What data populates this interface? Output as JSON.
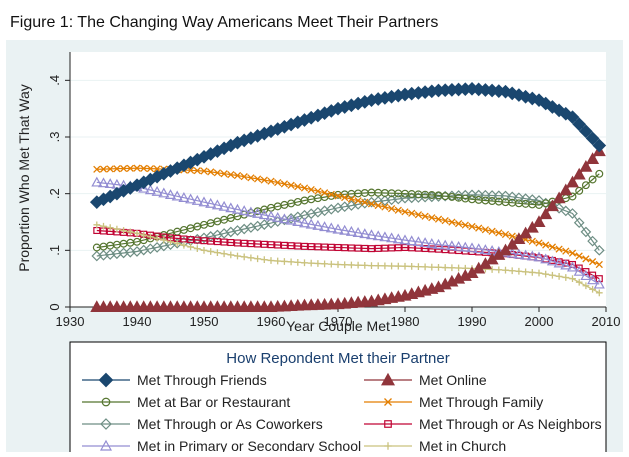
{
  "figure_title": "Figure 1: The Changing Way Americans Meet Their Partners",
  "chart_data": {
    "type": "line",
    "title": "Figure 1: The Changing Way Americans Meet Their Partners",
    "xlabel": "Year Couple Met",
    "ylabel": "Proportion Who Met That Way",
    "xlim": [
      1930,
      2010
    ],
    "ylim": [
      0,
      0.45
    ],
    "xticks": [
      1930,
      1940,
      1950,
      1960,
      1970,
      1980,
      1990,
      2000,
      2010
    ],
    "yticks": [
      0,
      0.1,
      0.2,
      0.3,
      0.4
    ],
    "ytick_labels": [
      "0",
      ".1",
      ".2",
      ".3",
      ".4"
    ],
    "grid": "horizontal",
    "legend_title": "How Repondent Met their Partner",
    "legend_placement": "bottom",
    "x": [
      1934,
      1940,
      1945,
      1950,
      1955,
      1960,
      1965,
      1970,
      1975,
      1980,
      1985,
      1990,
      1995,
      2000,
      2005,
      2009
    ],
    "series": [
      {
        "name": "Met Through Friends",
        "color": "#1a476f",
        "marker": "diamond",
        "values": [
          0.185,
          0.215,
          0.24,
          0.265,
          0.29,
          0.31,
          0.33,
          0.35,
          0.365,
          0.375,
          0.382,
          0.385,
          0.38,
          0.365,
          0.335,
          0.285
        ]
      },
      {
        "name": "Met Online",
        "color": "#90353b",
        "marker": "triangle",
        "values": [
          0.0,
          0.0,
          0.0,
          0.0,
          0.0,
          0.0,
          0.003,
          0.005,
          0.01,
          0.02,
          0.035,
          0.06,
          0.1,
          0.15,
          0.22,
          0.275
        ]
      },
      {
        "name": "Met at Bar or Restaurant",
        "color": "#55752f",
        "marker": "circle",
        "values": [
          0.105,
          0.115,
          0.13,
          0.145,
          0.16,
          0.175,
          0.188,
          0.198,
          0.202,
          0.2,
          0.197,
          0.19,
          0.185,
          0.18,
          0.195,
          0.235
        ]
      },
      {
        "name": "Met Through Family",
        "color": "#e37e00",
        "marker": "x",
        "values": [
          0.243,
          0.245,
          0.243,
          0.24,
          0.232,
          0.222,
          0.21,
          0.196,
          0.182,
          0.168,
          0.155,
          0.142,
          0.128,
          0.113,
          0.095,
          0.075
        ]
      },
      {
        "name": "Met Through or As Coworkers",
        "color": "#6e8e84",
        "marker": "diamond-open",
        "values": [
          0.09,
          0.098,
          0.11,
          0.122,
          0.135,
          0.148,
          0.162,
          0.175,
          0.185,
          0.192,
          0.195,
          0.198,
          0.196,
          0.188,
          0.165,
          0.1
        ]
      },
      {
        "name": "Met Through or As Neighbors",
        "color": "#c10534",
        "marker": "square",
        "values": [
          0.135,
          0.13,
          0.122,
          0.117,
          0.113,
          0.11,
          0.107,
          0.105,
          0.103,
          0.105,
          0.102,
          0.098,
          0.094,
          0.087,
          0.075,
          0.05
        ]
      },
      {
        "name": "Met in Primary or Secondary School",
        "color": "#938dd2",
        "marker": "triangle-open",
        "values": [
          0.22,
          0.212,
          0.198,
          0.185,
          0.172,
          0.16,
          0.148,
          0.137,
          0.127,
          0.118,
          0.11,
          0.104,
          0.096,
          0.088,
          0.07,
          0.04
        ]
      },
      {
        "name": "Met in Church",
        "color": "#cac27e",
        "marker": "plus",
        "values": [
          0.145,
          0.13,
          0.115,
          0.1,
          0.09,
          0.082,
          0.078,
          0.075,
          0.073,
          0.072,
          0.07,
          0.068,
          0.065,
          0.06,
          0.05,
          0.025
        ]
      }
    ]
  }
}
